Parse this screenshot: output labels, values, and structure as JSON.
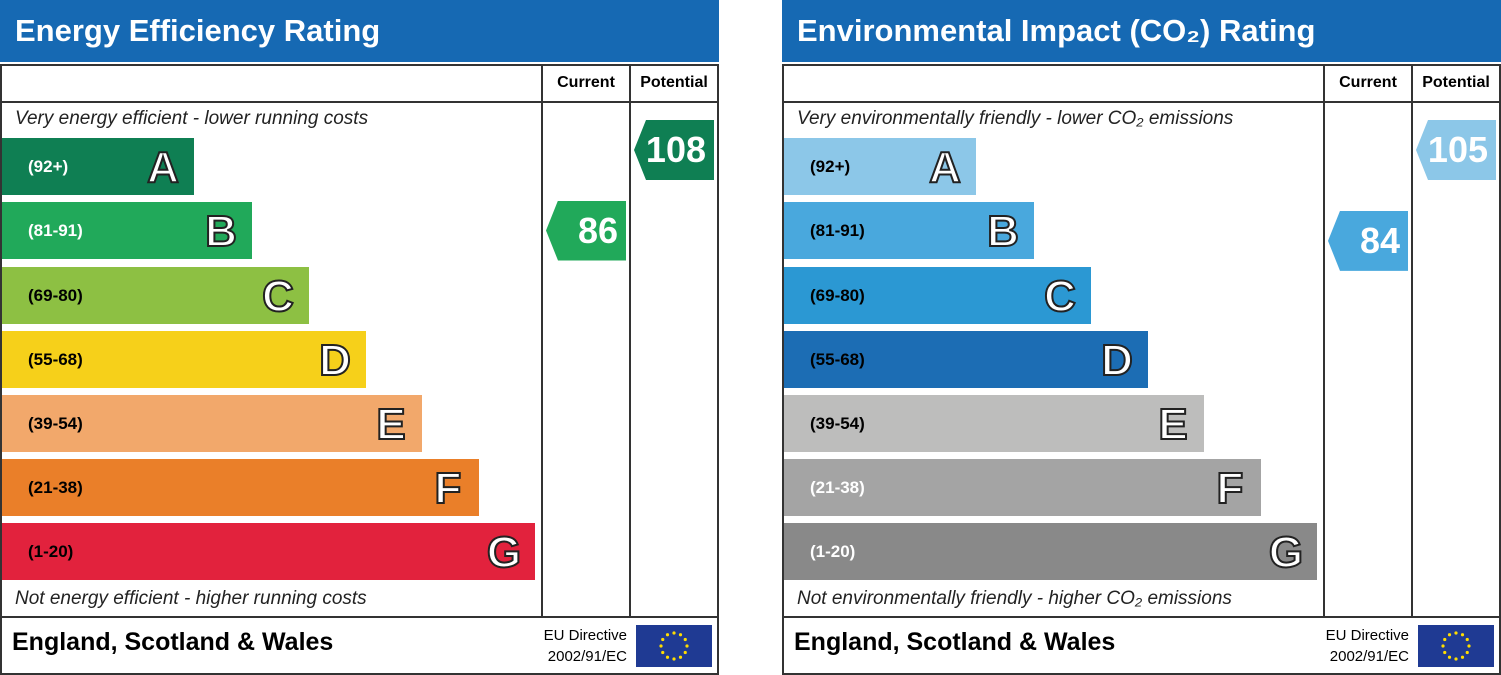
{
  "panels": [
    {
      "title": "Energy Efficiency Rating",
      "current_header": "Current",
      "potential_header": "Potential",
      "top_note": "Very energy efficient - lower running costs",
      "bottom_note": "Not energy efficient - higher running costs",
      "bands": [
        {
          "range": "(92+)",
          "letter": "A",
          "color": "#0f7f53",
          "text_color": "#ffffff"
        },
        {
          "range": "(81-91)",
          "letter": "B",
          "color": "#21a95a",
          "text_color": "#ffffff"
        },
        {
          "range": "(69-80)",
          "letter": "C",
          "color": "#8dc043",
          "text_color": "#000000"
        },
        {
          "range": "(55-68)",
          "letter": "D",
          "color": "#f6d01a",
          "text_color": "#000000"
        },
        {
          "range": "(39-54)",
          "letter": "E",
          "color": "#f2a86b",
          "text_color": "#000000"
        },
        {
          "range": "(21-38)",
          "letter": "F",
          "color": "#ea7f29",
          "text_color": "#000000"
        },
        {
          "range": "(1-20)",
          "letter": "G",
          "color": "#e2223d",
          "text_color": "#000000"
        }
      ],
      "current": 86,
      "potential": 108,
      "region": "England, Scotland & Wales",
      "directive": "EU Directive",
      "directive_code": "2002/91/EC"
    },
    {
      "title": "Environmental Impact (CO₂) Rating",
      "current_header": "Current",
      "potential_header": "Potential",
      "top_note": "Very environmentally friendly - lower CO₂ emissions",
      "bottom_note": "Not environmentally friendly - higher CO₂ emissions",
      "bands": [
        {
          "range": "(92+)",
          "letter": "A",
          "color": "#8cc7e8",
          "text_color": "#000000"
        },
        {
          "range": "(81-91)",
          "letter": "B",
          "color": "#49a8dd",
          "text_color": "#000000"
        },
        {
          "range": "(69-80)",
          "letter": "C",
          "color": "#2b98d3",
          "text_color": "#000000"
        },
        {
          "range": "(55-68)",
          "letter": "D",
          "color": "#1c6db4",
          "text_color": "#000000"
        },
        {
          "range": "(39-54)",
          "letter": "E",
          "color": "#bdbdbc",
          "text_color": "#000000"
        },
        {
          "range": "(21-38)",
          "letter": "F",
          "color": "#a4a4a4",
          "text_color": "#ffffff"
        },
        {
          "range": "(1-20)",
          "letter": "G",
          "color": "#898989",
          "text_color": "#ffffff"
        }
      ],
      "current": 84,
      "potential": 105,
      "region": "England, Scotland & Wales",
      "directive": "EU Directive",
      "directive_code": "2002/91/EC"
    }
  ]
}
